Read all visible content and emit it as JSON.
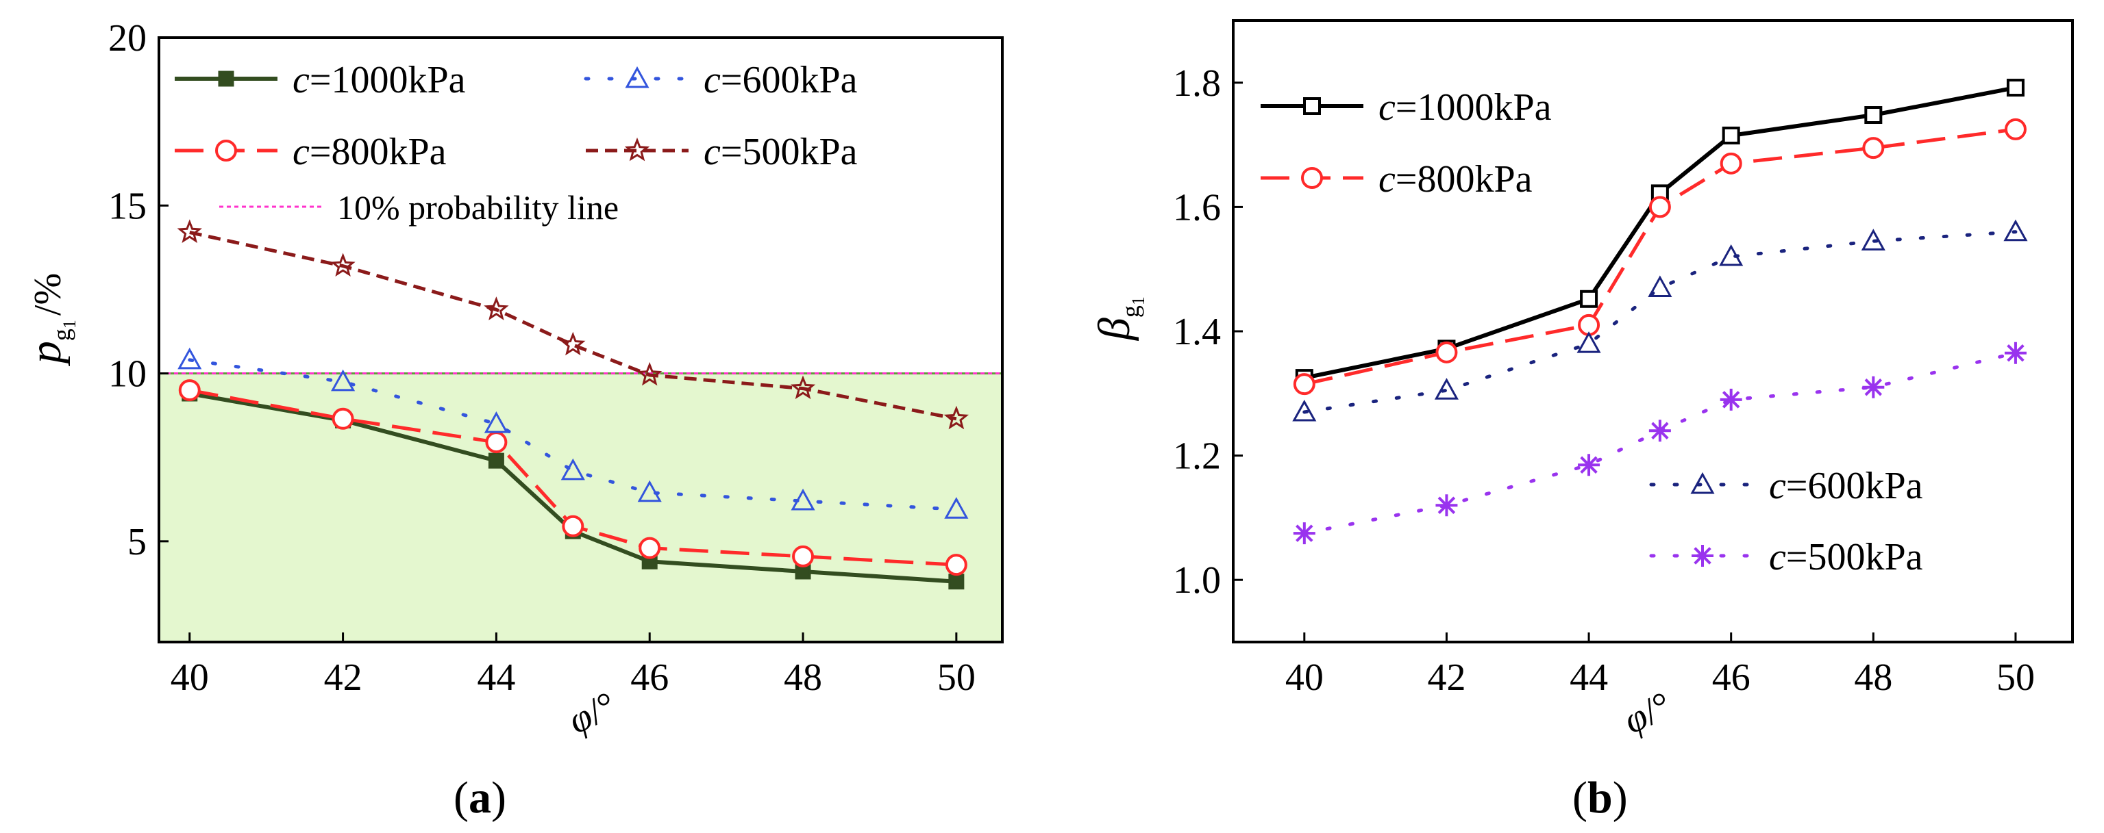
{
  "chart_data": [
    {
      "type": "line",
      "panel_label": "a",
      "xlabel": "φ/°",
      "ylabel_main": "p",
      "ylabel_sub": "g",
      "ylabel_subsub": "1",
      "ylabel_unit": "/%",
      "x": [
        40,
        42,
        44,
        45,
        46,
        48,
        50
      ],
      "x_ticks": [
        "40",
        "42",
        "44",
        "46",
        "48",
        "50"
      ],
      "x_tick_values": [
        40,
        42,
        44,
        46,
        48,
        50
      ],
      "y_ticks": [
        "5",
        "10",
        "15",
        "20"
      ],
      "y_tick_values": [
        5,
        10,
        15,
        20
      ],
      "xlim": [
        39.6,
        50.6
      ],
      "ylim": [
        2.0,
        20.0
      ],
      "shaded_region": {
        "y_from": 2.0,
        "y_to": 10.0,
        "fill": "#e4f7cf",
        "stroke": "#5f9b3a"
      },
      "reference_line": {
        "value": 10.0,
        "label": "10% probability line",
        "color": "#ff33cc"
      },
      "series": [
        {
          "name_prefix": "c",
          "name_suffix": "=1000kPa",
          "values": [
            9.4,
            8.6,
            7.4,
            5.3,
            4.4,
            4.1,
            3.8
          ],
          "color": "#334d20",
          "marker": "square-filled",
          "style": "solid"
        },
        {
          "name_prefix": "c",
          "name_suffix": "=800kPa",
          "values": [
            9.5,
            8.65,
            7.95,
            5.45,
            4.8,
            4.55,
            4.3
          ],
          "color": "#ff2a2a",
          "marker": "circle-open",
          "style": "dashed"
        },
        {
          "name_prefix": "c",
          "name_suffix": "=600kPa",
          "values": [
            10.4,
            9.75,
            8.5,
            7.1,
            6.45,
            6.2,
            5.95
          ],
          "color": "#3355dd",
          "marker": "triangle-open",
          "style": "dotted"
        },
        {
          "name_prefix": "c",
          "name_suffix": "=500kPa",
          "values": [
            14.2,
            13.2,
            11.9,
            10.85,
            9.95,
            9.55,
            8.65
          ],
          "color": "#8b1a1a",
          "marker": "star-open",
          "style": "short-dashed"
        }
      ]
    },
    {
      "type": "line",
      "panel_label": "b",
      "xlabel": "φ/°",
      "ylabel_main": "β",
      "ylabel_sub": "g",
      "ylabel_subsub": "1",
      "x": [
        40,
        42,
        44,
        45,
        46,
        48,
        50
      ],
      "x_ticks": [
        "40",
        "42",
        "44",
        "46",
        "48",
        "50"
      ],
      "x_tick_values": [
        40,
        42,
        44,
        46,
        48,
        50
      ],
      "y_ticks": [
        "1.0",
        "1.2",
        "1.4",
        "1.6",
        "1.8"
      ],
      "y_tick_values": [
        1.0,
        1.2,
        1.4,
        1.6,
        1.8
      ],
      "xlim": [
        39.0,
        50.8
      ],
      "ylim": [
        0.9,
        1.9
      ],
      "series": [
        {
          "name_prefix": "c",
          "name_suffix": "=1000kPa",
          "values": [
            1.325,
            1.372,
            1.452,
            1.622,
            1.715,
            1.748,
            1.792
          ],
          "color": "#000000",
          "marker": "square-open",
          "style": "solid"
        },
        {
          "name_prefix": "c",
          "name_suffix": "=800kPa",
          "values": [
            1.315,
            1.366,
            1.41,
            1.6,
            1.67,
            1.695,
            1.725
          ],
          "color": "#ff2a2a",
          "marker": "circle-open",
          "style": "dashed"
        },
        {
          "name_prefix": "c",
          "name_suffix": "=600kPa",
          "values": [
            1.27,
            1.305,
            1.38,
            1.47,
            1.52,
            1.545,
            1.56
          ],
          "color": "#1a237e",
          "marker": "triangle-open",
          "style": "dotted"
        },
        {
          "name_prefix": "c",
          "name_suffix": "=500kPa",
          "values": [
            1.075,
            1.12,
            1.185,
            1.24,
            1.29,
            1.31,
            1.365
          ],
          "color": "#9933ee",
          "marker": "asterisk",
          "style": "dotted"
        }
      ]
    }
  ]
}
